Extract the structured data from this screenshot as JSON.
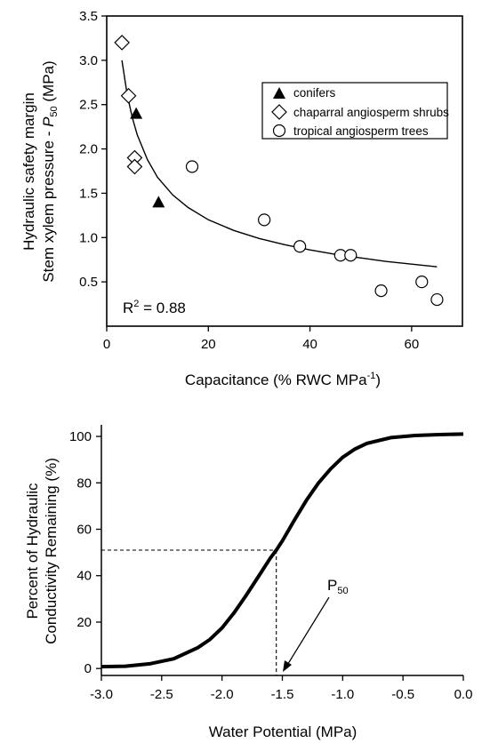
{
  "chart_data": [
    {
      "type": "scatter",
      "xlabel": "Capacitance (% RWC MPa",
      "xlabel_sup": "-1",
      "xlabel_end": ")",
      "ylabel_line1": "Hydraulic safety margin",
      "ylabel_line2_pre": "Stem xylem pressure - ",
      "ylabel_line2_p": "P",
      "ylabel_line2_sub": "50",
      "ylabel_line2_post": " (MPa)",
      "xlim": [
        0,
        70
      ],
      "ylim": [
        0.0,
        3.5
      ],
      "xticks": [
        "0",
        "20",
        "40",
        "60"
      ],
      "xtick_values": [
        0,
        20,
        40,
        60
      ],
      "yticks": [
        "0.5",
        "1.0",
        "1.5",
        "2.0",
        "2.5",
        "3.0",
        "3.5"
      ],
      "ytick_values": [
        0.5,
        1.0,
        1.5,
        2.0,
        2.5,
        3.0,
        3.5
      ],
      "annotation": "R",
      "annotation_sup": "2",
      "annotation_end": " = 0.88",
      "legend_position": "top-right",
      "series": [
        {
          "name": "conifers",
          "marker": "filled-triangle",
          "points": [
            [
              5.8,
              2.4
            ],
            [
              10.2,
              1.4
            ]
          ]
        },
        {
          "name": "chaparral angiosperm shrubs",
          "marker": "open-diamond",
          "points": [
            [
              3.0,
              3.2
            ],
            [
              4.3,
              2.6
            ],
            [
              5.5,
              1.9
            ],
            [
              5.5,
              1.8
            ]
          ]
        },
        {
          "name": "tropical angiosperm trees",
          "marker": "open-circle",
          "points": [
            [
              16.8,
              1.8
            ],
            [
              31.0,
              1.2
            ],
            [
              38.0,
              0.9
            ],
            [
              46.0,
              0.8
            ],
            [
              48.0,
              0.8
            ],
            [
              54.0,
              0.4
            ],
            [
              62.0,
              0.5
            ],
            [
              65.0,
              0.3
            ]
          ]
        }
      ],
      "fit_curve": {
        "x": [
          3,
          4,
          5,
          6,
          8,
          10,
          13,
          16,
          20,
          25,
          30,
          35,
          40,
          45,
          50,
          55,
          60,
          65
        ],
        "y": [
          3.0,
          2.62,
          2.36,
          2.16,
          1.88,
          1.68,
          1.48,
          1.34,
          1.2,
          1.08,
          0.99,
          0.92,
          0.86,
          0.81,
          0.77,
          0.73,
          0.7,
          0.67
        ]
      }
    },
    {
      "type": "line",
      "xlabel": "Water Potential (MPa)",
      "ylabel_line1": "Percent of Hydraulic",
      "ylabel_line2": "Conductivity Remaining (%)",
      "xlim": [
        -3.0,
        0.0
      ],
      "ylim": [
        -3,
        105
      ],
      "xticks": [
        "-3.0",
        "-2.5",
        "-2.0",
        "-1.5",
        "-1.0",
        "-0.5",
        "0.0"
      ],
      "xtick_values": [
        -3.0,
        -2.5,
        -2.0,
        -1.5,
        -1.0,
        -0.5,
        0.0
      ],
      "yticks": [
        "0",
        "20",
        "40",
        "60",
        "80",
        "100"
      ],
      "ytick_values": [
        0,
        20,
        40,
        60,
        80,
        100
      ],
      "p50_label": "P",
      "p50_sub": "50",
      "p50_value": -1.55,
      "p50_percent": 51,
      "curve": {
        "x": [
          -3.0,
          -2.8,
          -2.6,
          -2.4,
          -2.2,
          -2.1,
          -2.0,
          -1.9,
          -1.8,
          -1.7,
          -1.6,
          -1.55,
          -1.5,
          -1.4,
          -1.3,
          -1.2,
          -1.1,
          -1.0,
          -0.9,
          -0.8,
          -0.6,
          -0.4,
          -0.2,
          0.0
        ],
        "y": [
          0.8,
          1.0,
          2.0,
          4.2,
          9.0,
          12.5,
          17.5,
          24.0,
          31.5,
          39.5,
          47.5,
          51.0,
          55.0,
          64.0,
          72.5,
          80.0,
          86.0,
          91.0,
          94.5,
          97.0,
          99.5,
          100.4,
          100.8,
          101.0
        ]
      }
    }
  ]
}
